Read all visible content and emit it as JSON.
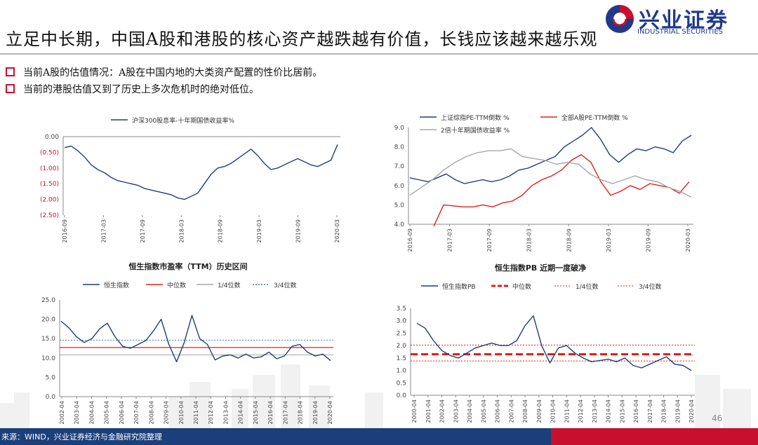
{
  "header": {
    "title": "立足中长期，中国A股和港股的核心资产越跌越有价值，长钱应该越来越乐观",
    "logo_text": "兴业证券",
    "logo_subtext": "INDUSTRIAL SECURITIES",
    "accent_blue": "#20398a",
    "accent_red": "#c8102e"
  },
  "bullets": [
    "当前A股的估值情况：A股在中国内地的大类资产配置的性价比居前。",
    "当前的港股估值又到了历史上多次危机时的绝对低位。"
  ],
  "footer": {
    "source": "来源：WIND，兴业证券经济与金融研究院整理",
    "page_number": "46"
  },
  "chart_data": [
    {
      "id": "c1",
      "type": "line",
      "title": "",
      "legend": [
        "沪深300股息率-十年期国债收益率%"
      ],
      "legend_position": "top",
      "yticks": [
        "0.00",
        "(0.50)",
        "(1.00)",
        "(1.50)",
        "(2.00)",
        "(2.50)"
      ],
      "ylim": [
        -2.5,
        0
      ],
      "xticks": [
        "2016-09",
        "2017-03",
        "2017-09",
        "2018-03",
        "2018-09",
        "2019-03",
        "2019-09",
        "2020-03"
      ],
      "x_range": [
        "2016-09",
        "2020-04"
      ],
      "series": [
        {
          "name": "沪深300股息率-十年期国债收益率%",
          "color": "#1f3f76",
          "values": [
            -0.35,
            -0.3,
            -0.45,
            -0.65,
            -0.9,
            -1.05,
            -1.15,
            -1.3,
            -1.4,
            -1.45,
            -1.5,
            -1.55,
            -1.65,
            -1.7,
            -1.75,
            -1.8,
            -1.85,
            -1.95,
            -2.0,
            -1.9,
            -1.8,
            -1.5,
            -1.2,
            -1.0,
            -0.95,
            -0.85,
            -0.7,
            -0.55,
            -0.4,
            -0.6,
            -0.85,
            -1.05,
            -1.0,
            -0.9,
            -0.8,
            -0.7,
            -0.8,
            -0.9,
            -0.95,
            -0.85,
            -0.75,
            -0.25
          ]
        }
      ]
    },
    {
      "id": "c2",
      "type": "line",
      "title": "",
      "legend": [
        "上证综指PE-TTM倒数 %",
        "全部A股PE-TTM倒数 %",
        "2倍十年期国债收益率 %"
      ],
      "legend_position": "top",
      "yticks": [
        "9.0",
        "8.0",
        "7.0",
        "6.0",
        "5.0",
        "4.0"
      ],
      "ylim": [
        4,
        9
      ],
      "xticks": [
        "2016-09",
        "2017-03",
        "2017-09",
        "2018-03",
        "2018-09",
        "2019-03",
        "2019-09",
        "2020-03"
      ],
      "x_range": [
        "2016-09",
        "2020-04"
      ],
      "series": [
        {
          "name": "上证综指PE-TTM倒数 %",
          "color": "#1f3f76",
          "values": [
            6.4,
            6.3,
            6.2,
            6.4,
            6.6,
            6.3,
            6.1,
            6.2,
            6.3,
            6.2,
            6.3,
            6.5,
            6.8,
            6.9,
            7.1,
            7.3,
            7.5,
            8.0,
            8.3,
            8.6,
            9.0,
            8.4,
            7.6,
            7.2,
            7.6,
            7.9,
            7.8,
            8.0,
            7.9,
            7.7,
            8.3,
            8.6
          ]
        },
        {
          "name": "全部A股PE-TTM倒数 %",
          "color": "#e0201b",
          "values": [
            3.9,
            5.0,
            4.95,
            4.9,
            4.9,
            5.0,
            4.9,
            5.1,
            5.2,
            5.5,
            6.0,
            6.3,
            6.5,
            6.8,
            7.3,
            7.6,
            7.2,
            6.2,
            5.5,
            5.7,
            6.0,
            5.8,
            6.1,
            6.0,
            5.9,
            5.6,
            6.2
          ]
        },
        {
          "name": "2倍十年期国债收益率 %",
          "color": "#a6a6a6",
          "values": [
            5.5,
            5.9,
            6.3,
            6.8,
            7.2,
            7.5,
            7.7,
            7.8,
            7.8,
            7.9,
            7.5,
            7.4,
            7.3,
            7.1,
            7.2,
            7.1,
            6.6,
            6.3,
            6.1,
            6.3,
            6.5,
            6.3,
            6.2,
            5.9,
            5.7,
            5.4
          ]
        }
      ]
    },
    {
      "id": "c3",
      "type": "line",
      "title": "恒生指数市盈率（TTM）历史区间",
      "legend": [
        "恒生指数",
        "中位数",
        "1/4位数",
        "3/4位数"
      ],
      "legend_position": "top",
      "yticks": [
        "25.0",
        "20.0",
        "15.0",
        "10.0",
        "5.0",
        "0.0"
      ],
      "ylim": [
        0,
        25
      ],
      "xticks": [
        "2002-04",
        "2003-04",
        "2004-04",
        "2005-04",
        "2006-04",
        "2007-04",
        "2008-04",
        "2009-04",
        "2010-04",
        "2011-04",
        "2012-04",
        "2013-04",
        "2014-04",
        "2015-04",
        "2016-04",
        "2017-04",
        "2018-04",
        "2019-04",
        "2020-04"
      ],
      "x_range": [
        "2002-01",
        "2020-04"
      ],
      "median": 12.7,
      "q1": 10.8,
      "q3": 14.6,
      "series": [
        {
          "name": "恒生指数",
          "color": "#1f3f76",
          "values": [
            19.5,
            17.8,
            15.5,
            14.0,
            15.0,
            17.5,
            19.0,
            15.5,
            13.0,
            12.5,
            13.5,
            14.5,
            17.0,
            20.0,
            13.5,
            9.0,
            14.0,
            21.0,
            15.0,
            13.5,
            9.5,
            10.5,
            10.8,
            10.0,
            11.0,
            10.0,
            10.3,
            11.5,
            9.8,
            10.5,
            13.0,
            13.5,
            11.5,
            10.5,
            11.0,
            9.3
          ]
        }
      ]
    },
    {
      "id": "c4",
      "type": "line",
      "title": "恒生指数PB 近期一度破净",
      "legend": [
        "恒生指数PB",
        "中位数",
        "1/4位数",
        "3/4位数"
      ],
      "legend_position": "top",
      "yticks": [
        "3.5",
        "3.0",
        "2.5",
        "2.0",
        "1.5",
        "1.0",
        "0.5",
        "0.0"
      ],
      "ylim": [
        0,
        3.5
      ],
      "xticks": [
        "2000-04",
        "2001-04",
        "2002-04",
        "2003-04",
        "2004-04",
        "2005-04",
        "2006-04",
        "2007-04",
        "2008-04",
        "2009-04",
        "2010-04",
        "2011-04",
        "2012-04",
        "2013-04",
        "2014-04",
        "2015-04",
        "2016-04",
        "2017-04",
        "2018-04",
        "2019-04",
        "2020-04"
      ],
      "x_range": [
        "2000-01",
        "2020-04"
      ],
      "median": 1.65,
      "q1": 1.38,
      "q3": 2.02,
      "series": [
        {
          "name": "恒生指数PB",
          "color": "#1f3f76",
          "values": [
            2.9,
            2.7,
            2.2,
            1.8,
            1.6,
            1.5,
            1.7,
            1.9,
            2.0,
            2.1,
            2.0,
            2.0,
            2.2,
            2.8,
            3.2,
            2.0,
            1.3,
            1.9,
            2.0,
            1.7,
            1.5,
            1.35,
            1.4,
            1.45,
            1.35,
            1.5,
            1.2,
            1.1,
            1.25,
            1.4,
            1.55,
            1.25,
            1.2,
            1.0
          ]
        }
      ]
    }
  ]
}
